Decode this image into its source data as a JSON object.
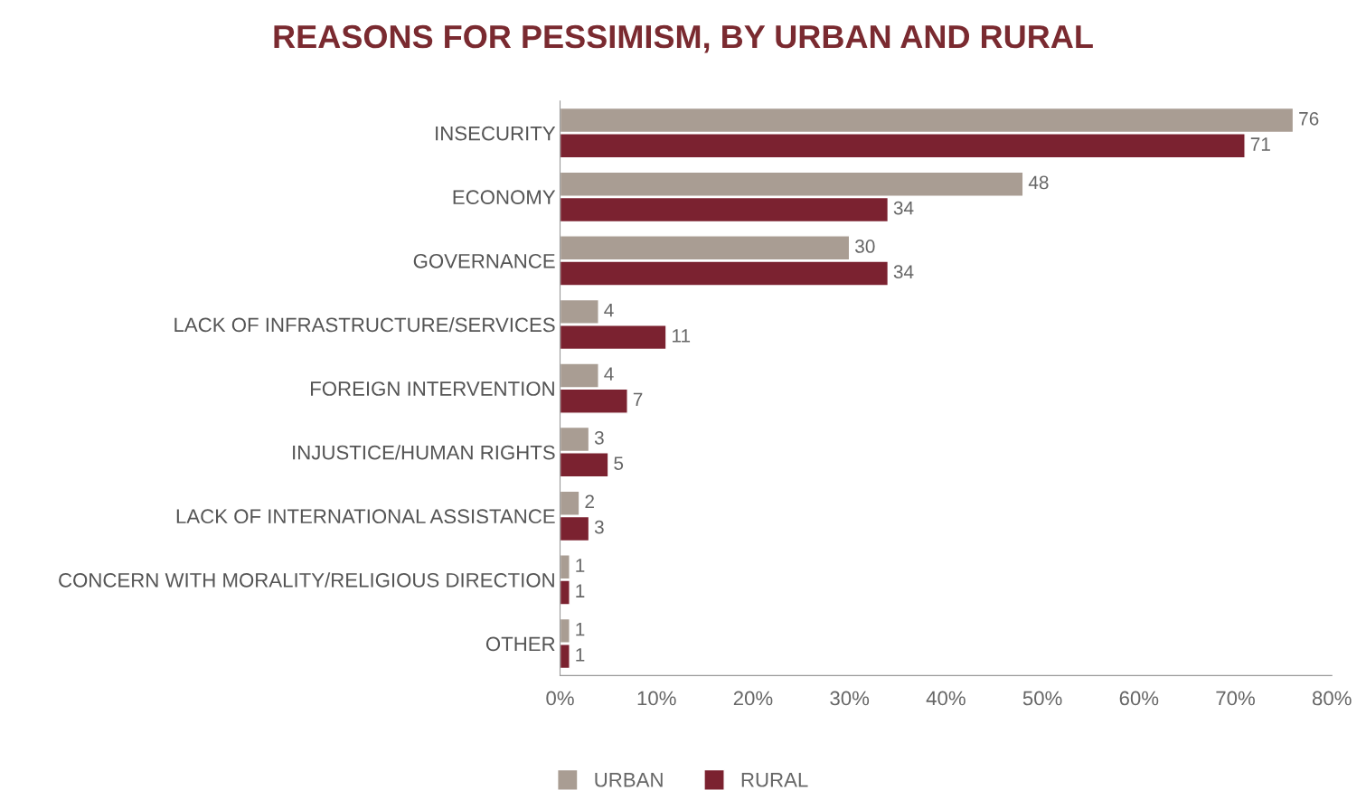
{
  "chart_data": {
    "type": "bar",
    "orientation": "horizontal",
    "title": "REASONS FOR PESSIMISM, BY URBAN AND RURAL",
    "categories": [
      "INSECURITY",
      "ECONOMY",
      "GOVERNANCE",
      "LACK OF INFRASTRUCTURE/SERVICES",
      "FOREIGN INTERVENTION",
      "INJUSTICE/HUMAN RIGHTS",
      "LACK OF INTERNATIONAL ASSISTANCE",
      "CONCERN WITH MORALITY/RELIGIOUS DIRECTION",
      "OTHER"
    ],
    "series": [
      {
        "name": "URBAN",
        "color": "#a99d93",
        "values": [
          76,
          48,
          30,
          4,
          4,
          3,
          2,
          1,
          1
        ]
      },
      {
        "name": "RURAL",
        "color": "#7b2230",
        "values": [
          71,
          34,
          34,
          11,
          7,
          5,
          3,
          1,
          1
        ]
      }
    ],
    "xlim": [
      0,
      80
    ],
    "xticks": [
      {
        "value": 0,
        "label": "0%"
      },
      {
        "value": 10,
        "label": "10%"
      },
      {
        "value": 20,
        "label": "20%"
      },
      {
        "value": 30,
        "label": "30%"
      },
      {
        "value": 40,
        "label": "40%"
      },
      {
        "value": 50,
        "label": "50%"
      },
      {
        "value": 60,
        "label": "60%"
      },
      {
        "value": 70,
        "label": "70%"
      },
      {
        "value": 80,
        "label": "80%"
      }
    ],
    "data_labels": true,
    "legend": "bottom",
    "grid": false
  }
}
